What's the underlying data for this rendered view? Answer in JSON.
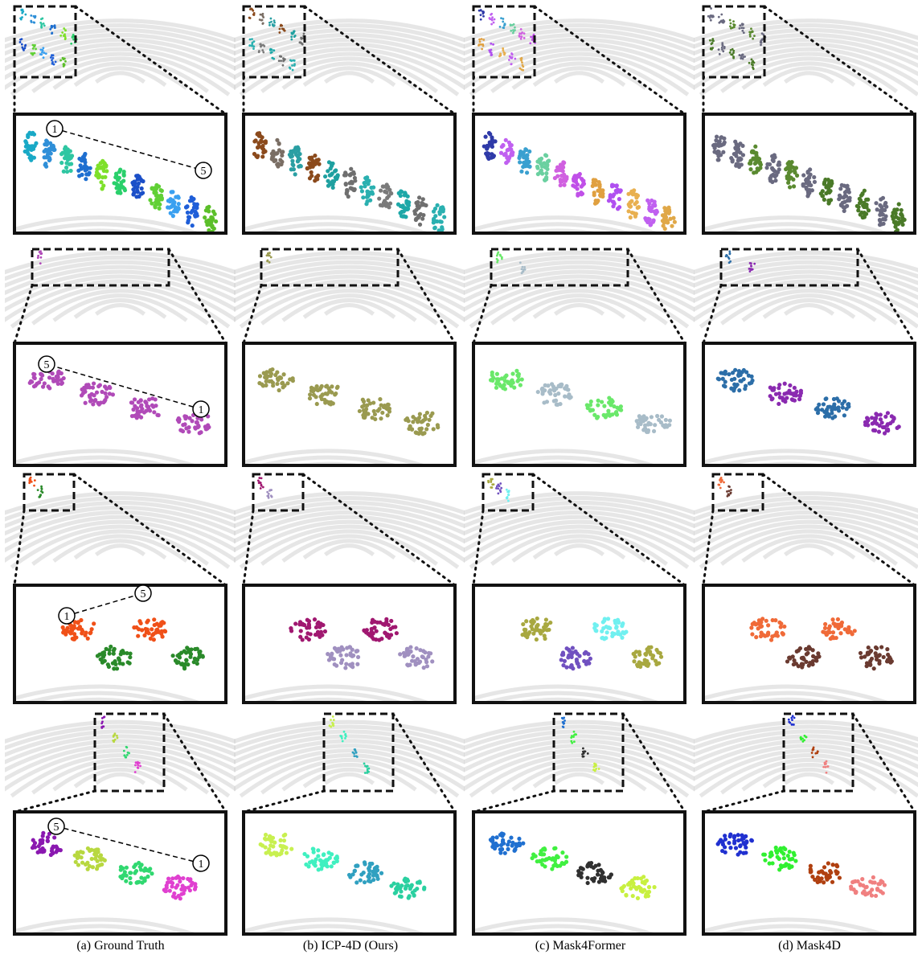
{
  "figure": {
    "columns": [
      {
        "caption": "(a) Ground Truth"
      },
      {
        "caption": "(b) ICP-4D (Ours)"
      },
      {
        "caption": "(c) Mask4Former"
      },
      {
        "caption": "(d) Mask4D"
      }
    ],
    "markers": [
      {
        "row": 0,
        "start": "1",
        "end": "5"
      },
      {
        "row": 1,
        "start": "1",
        "end": "5"
      },
      {
        "row": 2,
        "start": "1",
        "end": "5"
      },
      {
        "row": 3,
        "start": "1",
        "end": "5"
      }
    ],
    "colors": {
      "background": "#ffffff",
      "scan_gray": "#d2d2d2",
      "frame": "#111111"
    }
  }
}
